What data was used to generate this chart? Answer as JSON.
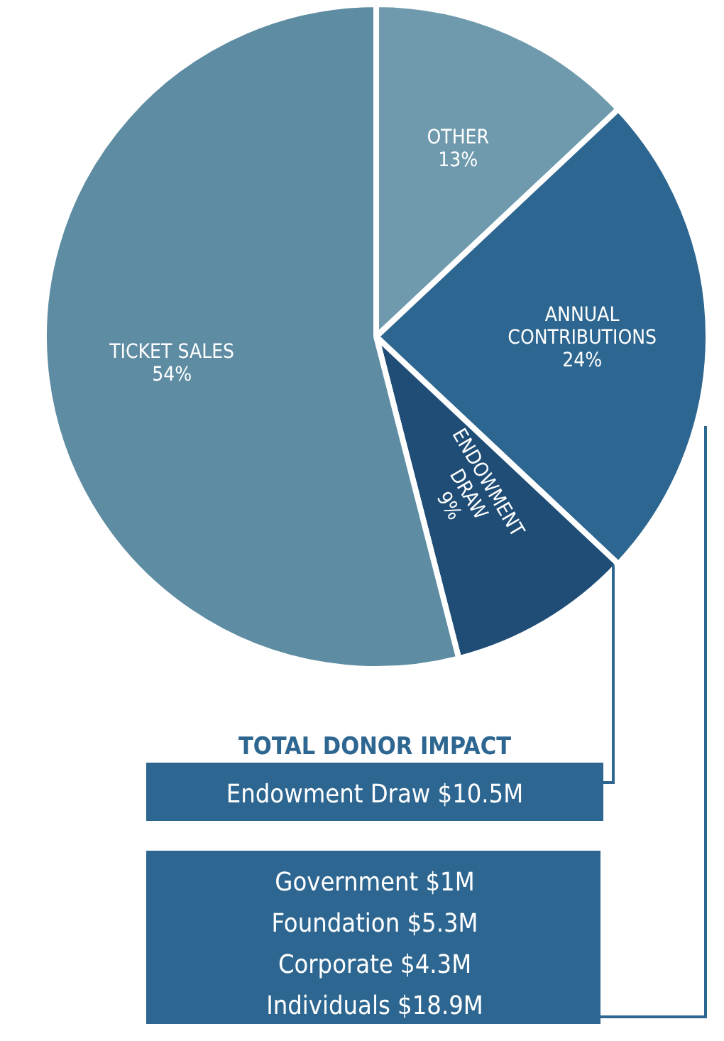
{
  "chart_data": {
    "type": "pie",
    "categories": [
      "OTHER",
      "ANNUAL CONTRIBUTIONS",
      "ENDOWMENT DRAW",
      "TICKET SALES"
    ],
    "values": [
      13,
      24,
      9,
      54
    ],
    "colors": [
      "#6f9aad",
      "#2d6690",
      "#1f4d76",
      "#5e8ca2"
    ],
    "value_labels": [
      "13%",
      "24%",
      "9%",
      "54%"
    ],
    "annotations": [
      "TOTAL DONOR IMPACT",
      "Endowment Draw $10.5M",
      "Government $1M",
      "Foundation $5.3M",
      "Corporate $4.3M",
      "Individuals $18.9M"
    ]
  }
}
